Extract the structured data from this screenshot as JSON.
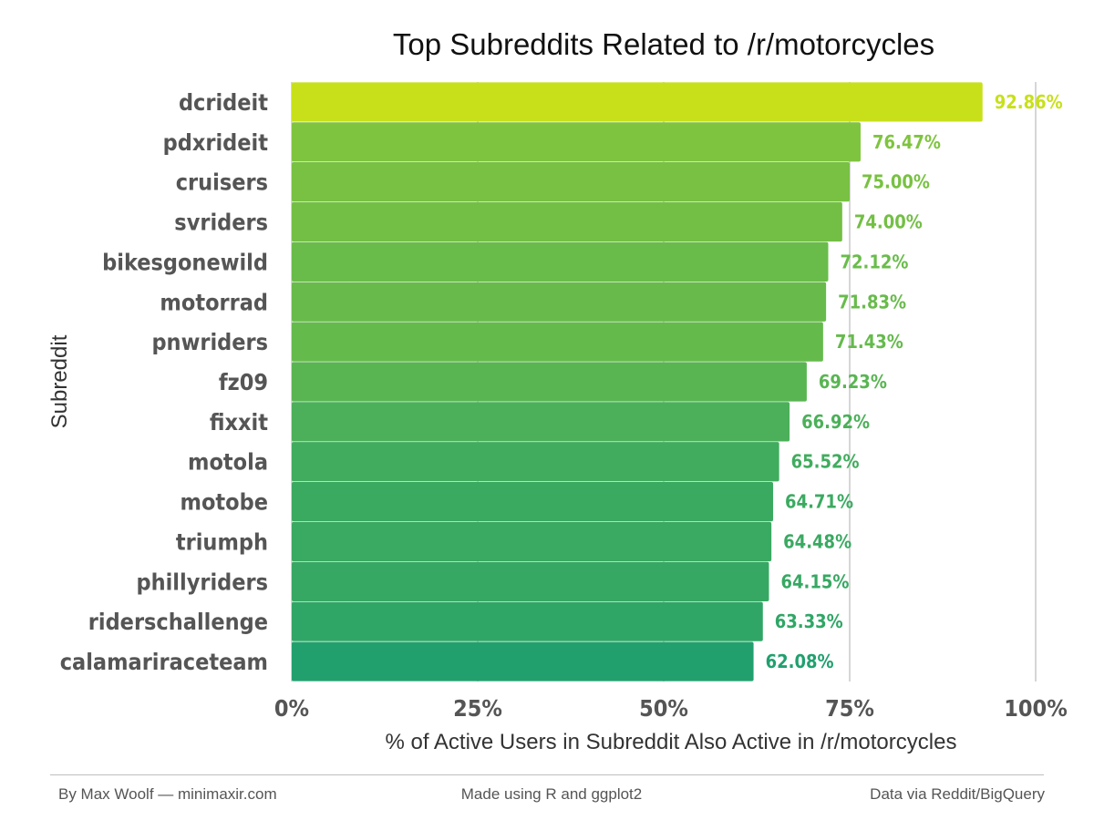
{
  "chart_data": {
    "type": "bar",
    "orientation": "horizontal",
    "title": "Top Subreddits Related to /r/motorcycles",
    "xlabel": "% of Active Users in Subreddit Also Active in /r/motorcycles",
    "ylabel": "Subreddit",
    "xlim": [
      0,
      100
    ],
    "x_ticks": [
      "0%",
      "25%",
      "50%",
      "75%",
      "100%"
    ],
    "grid": "vertical major",
    "categories": [
      "dcrideit",
      "pdxrideit",
      "cruisers",
      "svriders",
      "bikesgonewild",
      "motorrad",
      "pnwriders",
      "fz09",
      "fixxit",
      "motola",
      "motobe",
      "triumph",
      "phillyriders",
      "riderschallenge",
      "calamariraceteam"
    ],
    "values": [
      92.86,
      76.47,
      75.0,
      74.0,
      72.12,
      71.83,
      71.43,
      69.23,
      66.92,
      65.52,
      64.71,
      64.48,
      64.15,
      63.33,
      62.08
    ],
    "value_labels": [
      "92.86%",
      "76.47%",
      "75.00%",
      "74.00%",
      "72.12%",
      "71.83%",
      "71.43%",
      "69.23%",
      "66.92%",
      "65.52%",
      "64.71%",
      "64.48%",
      "64.15%",
      "63.33%",
      "62.08%"
    ],
    "color_scale": {
      "low": "#21a06e",
      "high": "#c8e01a"
    }
  },
  "footer": {
    "left": "By Max Woolf — minimaxir.com",
    "middle": "Made using R and ggplot2",
    "right": "Data via Reddit/BigQuery"
  }
}
